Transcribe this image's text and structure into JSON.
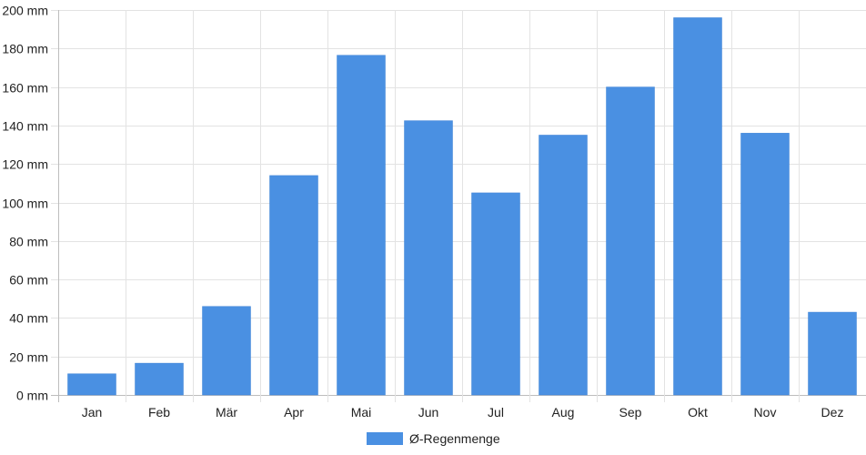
{
  "chart_data": {
    "type": "bar",
    "categories": [
      "Jan",
      "Feb",
      "Mär",
      "Apr",
      "Mai",
      "Jun",
      "Jul",
      "Aug",
      "Sep",
      "Okt",
      "Nov",
      "Dez"
    ],
    "series": [
      {
        "name": "Ø-Regenmenge",
        "values": [
          11,
          16.5,
          46,
          114,
          176.5,
          142.5,
          105,
          135,
          160,
          196,
          136,
          43
        ],
        "color": "#4a90e2"
      }
    ],
    "y_tick_labels": [
      "0 mm",
      "20 mm",
      "40 mm",
      "60 mm",
      "80 mm",
      "100 mm",
      "120 mm",
      "140 mm",
      "160 mm",
      "180 mm",
      "200 mm"
    ],
    "ylim": [
      0,
      200
    ],
    "y_unit": "mm",
    "grid": true,
    "legend_position": "bottom-center",
    "title": "",
    "xlabel": "",
    "ylabel": ""
  }
}
